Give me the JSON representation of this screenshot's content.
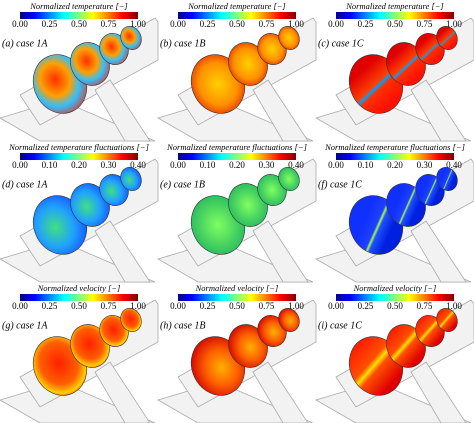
{
  "panels": [
    {
      "label": "(a) case 1A",
      "colorbar": {
        "title": "Normalized temperature [−]",
        "ticks": [
          "0.00",
          "0.25",
          "0.50",
          "0.75",
          "1.00"
        ]
      }
    },
    {
      "label": "(b) case 1B",
      "colorbar": {
        "title": "Normalized temperature [−]",
        "ticks": [
          "0.00",
          "0.25",
          "0.50",
          "0.75",
          "1.00"
        ]
      }
    },
    {
      "label": "(c) case 1C",
      "colorbar": {
        "title": "Normalized temperature [−]",
        "ticks": [
          "0.00",
          "0.25",
          "0.50",
          "0.75",
          "1.00"
        ]
      }
    },
    {
      "label": "(d) case 1A",
      "colorbar": {
        "title": "Normalized temperature fluctuations [−]",
        "ticks": [
          "0.00",
          "0.10",
          "0.20",
          "0.30",
          "0.40"
        ]
      }
    },
    {
      "label": "(e) case 1B",
      "colorbar": {
        "title": "Normalized temperature fluctuations [−]",
        "ticks": [
          "0.00",
          "0.10",
          "0.20",
          "0.30",
          "0.40"
        ]
      }
    },
    {
      "label": "(f) case 1C",
      "colorbar": {
        "title": "Normalized temperature fluctuations [−]",
        "ticks": [
          "0.00",
          "0.10",
          "0.20",
          "0.30",
          "0.40"
        ]
      }
    },
    {
      "label": "(g) case 1A",
      "colorbar": {
        "title": "Normalized velocity [−]",
        "ticks": [
          "0.00",
          "0.25",
          "0.50",
          "0.75",
          "1.00"
        ]
      }
    },
    {
      "label": "(h) case 1B",
      "colorbar": {
        "title": "Normalized velocity [−]",
        "ticks": [
          "0.00",
          "0.25",
          "0.50",
          "0.75",
          "1.00"
        ]
      }
    },
    {
      "label": "(i) case 1C",
      "colorbar": {
        "title": "Normalized velocity [−]",
        "ticks": [
          "0.00",
          "0.25",
          "0.50",
          "0.75",
          "1.00"
        ]
      }
    }
  ]
}
